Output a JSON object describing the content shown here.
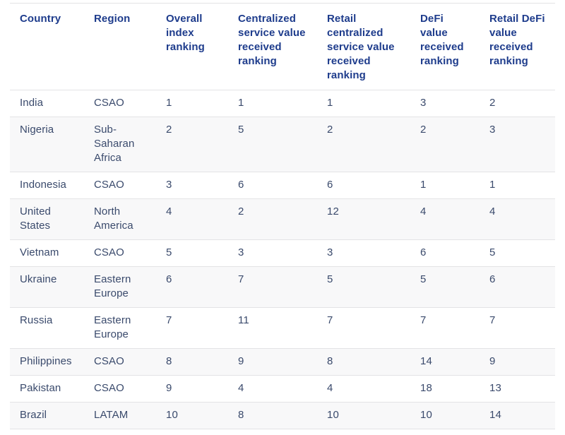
{
  "colors": {
    "header_text": "#1e3c8c",
    "body_text": "#3a4a6c",
    "border": "#e3e3e5",
    "alt_row_bg": "#f8f8f9",
    "page_bg": "#ffffff"
  },
  "chart_data": {
    "type": "table",
    "columns": [
      "Country",
      "Region",
      "Overall index ranking",
      "Centralized service value received ranking",
      "Retail centralized service value received ranking",
      "DeFi value received ranking",
      "Retail DeFi value received ranking"
    ],
    "rows": [
      [
        "India",
        "CSAO",
        "1",
        "1",
        "1",
        "3",
        "2"
      ],
      [
        "Nigeria",
        "Sub-Saharan Africa",
        "2",
        "5",
        "2",
        "2",
        "3"
      ],
      [
        "Indonesia",
        "CSAO",
        "3",
        "6",
        "6",
        "1",
        "1"
      ],
      [
        "United States",
        "North America",
        "4",
        "2",
        "12",
        "4",
        "4"
      ],
      [
        "Vietnam",
        "CSAO",
        "5",
        "3",
        "3",
        "6",
        "5"
      ],
      [
        "Ukraine",
        "Eastern Europe",
        "6",
        "7",
        "5",
        "5",
        "6"
      ],
      [
        "Russia",
        "Eastern Europe",
        "7",
        "11",
        "7",
        "7",
        "7"
      ],
      [
        "Philippines",
        "CSAO",
        "8",
        "9",
        "8",
        "14",
        "9"
      ],
      [
        "Pakistan",
        "CSAO",
        "9",
        "4",
        "4",
        "18",
        "13"
      ],
      [
        "Brazil",
        "LATAM",
        "10",
        "8",
        "10",
        "10",
        "14"
      ]
    ]
  }
}
